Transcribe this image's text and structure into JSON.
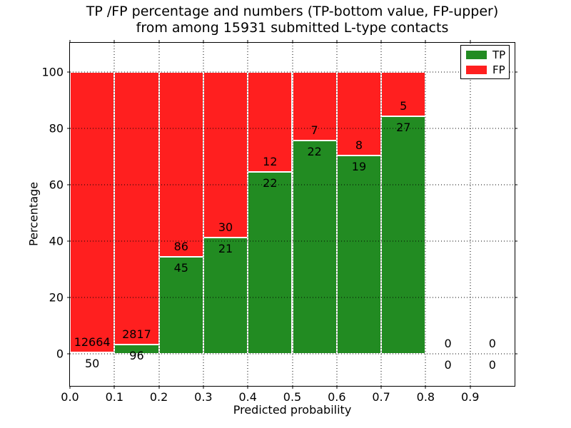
{
  "chart_data": {
    "type": "bar",
    "variant": "stacked-percentage-histogram",
    "title_line1": "TP /FP percentage and numbers (TP-bottom value, FP-upper)",
    "title_line2": "from among 15931 submitted L-type contacts",
    "total_submitted": 15931,
    "xlabel": "Predicted probability",
    "ylabel": "Percentage",
    "xlim": [
      0.0,
      1.0
    ],
    "ylim": [
      -11.5,
      110.5
    ],
    "xtick_labels": [
      "0.0",
      "0.1",
      "0.2",
      "0.3",
      "0.4",
      "0.5",
      "0.6",
      "0.7",
      "0.8",
      "0.9"
    ],
    "ytick_labels": [
      "0",
      "20",
      "40",
      "60",
      "80",
      "100"
    ],
    "grid": "dotted-black",
    "colors": {
      "tp": "#228b22",
      "fp": "#ff1f1f"
    },
    "legend": {
      "position": "upper-right",
      "entries": [
        {
          "label": "TP",
          "color": "#228b22"
        },
        {
          "label": "FP",
          "color": "#ff1f1f"
        }
      ]
    },
    "bins": [
      {
        "range": [
          0.0,
          0.1
        ],
        "tp_count": 50,
        "fp_count": 12664,
        "tp_pct": 0.39,
        "bar_top_pct": 100
      },
      {
        "range": [
          0.1,
          0.2
        ],
        "tp_count": 96,
        "fp_count": 2817,
        "tp_pct": 3.3,
        "bar_top_pct": 100
      },
      {
        "range": [
          0.2,
          0.3
        ],
        "tp_count": 45,
        "fp_count": 86,
        "tp_pct": 34.35,
        "bar_top_pct": 100
      },
      {
        "range": [
          0.3,
          0.4
        ],
        "tp_count": 21,
        "fp_count": 30,
        "tp_pct": 41.18,
        "bar_top_pct": 100
      },
      {
        "range": [
          0.4,
          0.5
        ],
        "tp_count": 22,
        "fp_count": 12,
        "tp_pct": 64.71,
        "bar_top_pct": 100
      },
      {
        "range": [
          0.5,
          0.6
        ],
        "tp_count": 22,
        "fp_count": 7,
        "tp_pct": 75.86,
        "bar_top_pct": 100
      },
      {
        "range": [
          0.6,
          0.7
        ],
        "tp_count": 19,
        "fp_count": 8,
        "tp_pct": 70.37,
        "bar_top_pct": 100
      },
      {
        "range": [
          0.7,
          0.8
        ],
        "tp_count": 27,
        "fp_count": 5,
        "tp_pct": 84.38,
        "bar_top_pct": 100
      },
      {
        "range": [
          0.8,
          0.9
        ],
        "tp_count": 0,
        "fp_count": 0,
        "tp_pct": 0,
        "bar_top_pct": 0
      },
      {
        "range": [
          0.9,
          1.0
        ],
        "tp_count": 0,
        "fp_count": 0,
        "tp_pct": 0,
        "bar_top_pct": 0
      }
    ]
  }
}
